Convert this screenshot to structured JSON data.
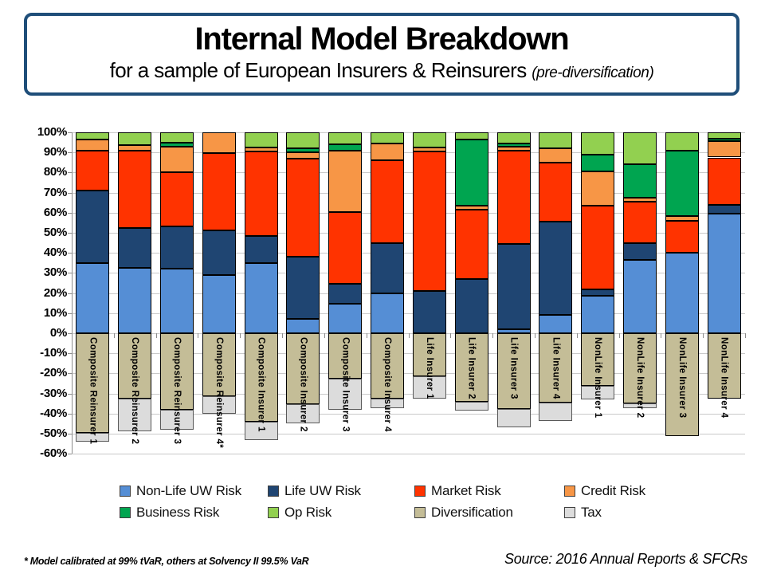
{
  "header": {
    "title": "Internal Model Breakdown",
    "subtitle": "for a sample of European Insurers & Reinsurers",
    "subtitle_note": "(pre-diversification)"
  },
  "footer": {
    "footnote": "* Model calibrated at 99% tVaR, others at Solvency II 99.5% VaR",
    "source": "Source:  2016 Annual Reports & SFCRs"
  },
  "colors": {
    "title_border": "#1F4E79",
    "gridline": "#C9C9C9",
    "axis": "#8C8C8C",
    "segment_border": "#000000",
    "tax_border": "#595959"
  },
  "y_axis": {
    "tick_labels": [
      "100%",
      "90%",
      "80%",
      "70%",
      "60%",
      "50%",
      "40%",
      "30%",
      "20%",
      "10%",
      "0%",
      "-10%",
      "-20%",
      "-30%",
      "-40%",
      "-50%",
      "-60%"
    ],
    "tick_values": [
      100,
      90,
      80,
      70,
      60,
      50,
      40,
      30,
      20,
      10,
      0,
      -10,
      -20,
      -30,
      -40,
      -50,
      -60
    ]
  },
  "chart_data": {
    "type": "bar",
    "stacked": true,
    "title": "Internal Model Breakdown for a sample of European Insurers & Reinsurers (pre-diversification)",
    "xlabel": "",
    "ylabel": "",
    "ylim": [
      -60,
      100
    ],
    "grid": true,
    "legend_position": "bottom",
    "categories": [
      "Composite Reinsurer 1",
      "Composite Reinsurer 2",
      "Composite Reinsurer 3",
      "Composite Reinsurer 4*",
      "Composite Insurer 1",
      "Composite Insurer 2",
      "Composite Insurer 3",
      "Composite Insurer 4",
      "Life Insurer 1",
      "Life Insurer 2",
      "Life Insurer 3",
      "Life Insurer 4",
      "NonLife Insurer 1",
      "NonLife Insurer 2",
      "NonLife Insurer 3",
      "NonLife Insurer 4"
    ],
    "series": [
      {
        "name": "Non-Life UW Risk",
        "color": "#558ED5",
        "values": [
          35,
          32.5,
          32,
          29,
          35,
          7,
          14.5,
          20,
          0,
          0,
          2,
          9,
          18.5,
          36.5,
          40,
          59.5
        ]
      },
      {
        "name": "Life UW Risk",
        "color": "#1F4572",
        "values": [
          36,
          20,
          21,
          22,
          13.5,
          31,
          10,
          25,
          21,
          27,
          42.5,
          46.5,
          3.5,
          8.5,
          0,
          4.5
        ]
      },
      {
        "name": "Market Risk",
        "color": "#FF3300",
        "values": [
          20,
          38.5,
          27,
          38.5,
          42,
          49,
          36,
          41,
          69.5,
          34.5,
          46.5,
          29.5,
          41.5,
          20.5,
          16,
          23.5
        ]
      },
      {
        "name": "Credit Risk",
        "color": "#F79646",
        "values": [
          5.5,
          2.5,
          13,
          10.5,
          2,
          3,
          30.5,
          8.5,
          2,
          2,
          2,
          7,
          17,
          2,
          2.5,
          8
        ]
      },
      {
        "name": "Business Risk",
        "color": "#00A550",
        "values": [
          0,
          0,
          2,
          0,
          0,
          2,
          3,
          0,
          0,
          33,
          1.5,
          0,
          8.5,
          16.5,
          32.5,
          1.5
        ]
      },
      {
        "name": "Op Risk",
        "color": "#92D050",
        "values": [
          3.5,
          6.5,
          5,
          0,
          7.5,
          8,
          6,
          5.5,
          7.5,
          3.5,
          5.5,
          8,
          11,
          16,
          9,
          3
        ]
      },
      {
        "name": "Diversification",
        "color": "#C4BD97",
        "values": [
          -49.5,
          -32.5,
          -38,
          -31.5,
          -44,
          -35.5,
          -22.5,
          -32.5,
          -21.5,
          -34,
          -37.5,
          -34.5,
          -26,
          -35,
          -51,
          -32.5
        ]
      },
      {
        "name": "Tax",
        "color": "#DCDCDC",
        "values": [
          -4.5,
          -16.5,
          -10,
          -8.5,
          -9,
          -9.5,
          -15.5,
          -5,
          -11,
          -4.5,
          -9.5,
          -9,
          -7,
          -2.5,
          0,
          0
        ]
      }
    ]
  }
}
